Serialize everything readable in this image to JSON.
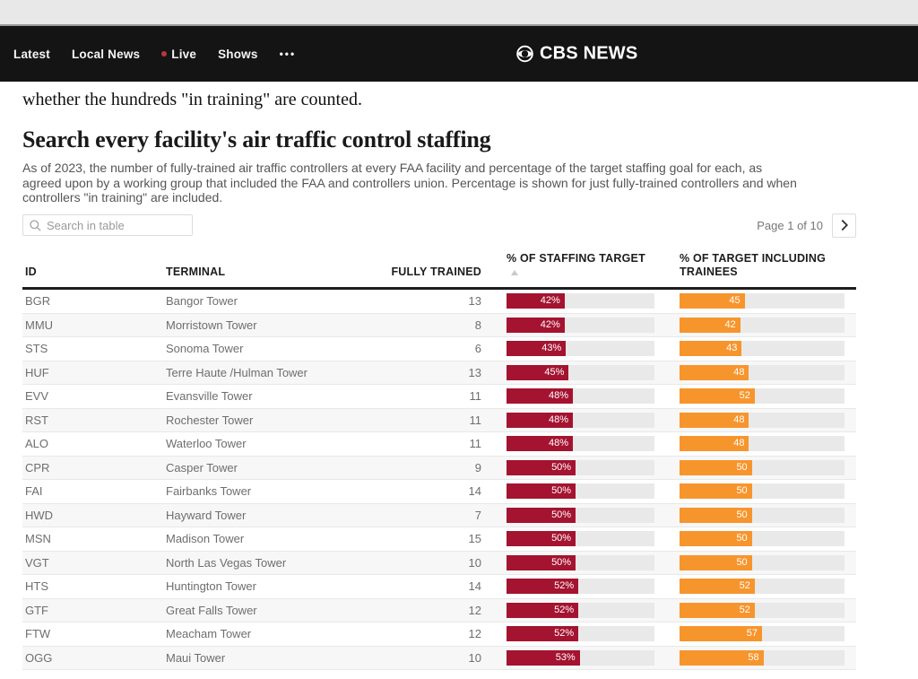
{
  "nav": {
    "items": [
      {
        "label": "Latest"
      },
      {
        "label": "Local News"
      },
      {
        "label": "Live",
        "has_dot": true
      },
      {
        "label": "Shows"
      },
      {
        "label": "•••"
      }
    ],
    "live_dot_color": "#b5383e",
    "brand": "CBS NEWS"
  },
  "article": {
    "intro_fragment": "whether the hundreds \"in training\" are counted.",
    "title": "Search every facility's air traffic control staffing",
    "description_lines": [
      "As of 2023, the number of fully-trained air traffic controllers at every FAA facility and percentage of the target staffing goal for each, as",
      "agreed upon by a working group that included the FAA and controllers union. Percentage is shown for just fully-trained controllers and when",
      "controllers \"in training\" are included."
    ]
  },
  "table": {
    "search_placeholder": "Search in table",
    "pagination": {
      "label": "Page 1 of 10"
    },
    "columns": {
      "id": "ID",
      "terminal": "TERMINAL",
      "fully_trained": "FULLY TRAINED",
      "staffing": "% OF STAFFING TARGET",
      "trainees": "% OF TARGET INCLUDING TRAINEES"
    },
    "sort": {
      "column": "% OF STAFFING TARGET",
      "direction": "asc"
    },
    "colors": {
      "staffing_bar": "#a41330",
      "trainees_bar": "#f7952d",
      "track": "#e9e9e9"
    },
    "bar_scale": {
      "staffing_max": 107,
      "trainees_max": 114
    },
    "rows": [
      {
        "id": "BGR",
        "terminal": "Bangor Tower",
        "fully_trained": "13",
        "staffing_pct": 42,
        "staffing_label": "42%",
        "trainees_pct": 45,
        "trainees_label": "45"
      },
      {
        "id": "MMU",
        "terminal": "Morristown Tower",
        "fully_trained": "8",
        "staffing_pct": 42,
        "staffing_label": "42%",
        "trainees_pct": 42,
        "trainees_label": "42"
      },
      {
        "id": "STS",
        "terminal": "Sonoma Tower",
        "fully_trained": "6",
        "staffing_pct": 43,
        "staffing_label": "43%",
        "trainees_pct": 43,
        "trainees_label": "43"
      },
      {
        "id": "HUF",
        "terminal": "Terre Haute /Hulman Tower",
        "fully_trained": "13",
        "staffing_pct": 45,
        "staffing_label": "45%",
        "trainees_pct": 48,
        "trainees_label": "48"
      },
      {
        "id": "EVV",
        "terminal": "Evansville Tower",
        "fully_trained": "11",
        "staffing_pct": 48,
        "staffing_label": "48%",
        "trainees_pct": 52,
        "trainees_label": "52"
      },
      {
        "id": "RST",
        "terminal": "Rochester Tower",
        "fully_trained": "11",
        "staffing_pct": 48,
        "staffing_label": "48%",
        "trainees_pct": 48,
        "trainees_label": "48"
      },
      {
        "id": "ALO",
        "terminal": "Waterloo Tower",
        "fully_trained": "11",
        "staffing_pct": 48,
        "staffing_label": "48%",
        "trainees_pct": 48,
        "trainees_label": "48"
      },
      {
        "id": "CPR",
        "terminal": "Casper Tower",
        "fully_trained": "9",
        "staffing_pct": 50,
        "staffing_label": "50%",
        "trainees_pct": 50,
        "trainees_label": "50"
      },
      {
        "id": "FAI",
        "terminal": "Fairbanks Tower",
        "fully_trained": "14",
        "staffing_pct": 50,
        "staffing_label": "50%",
        "trainees_pct": 50,
        "trainees_label": "50"
      },
      {
        "id": "HWD",
        "terminal": "Hayward Tower",
        "fully_trained": "7",
        "staffing_pct": 50,
        "staffing_label": "50%",
        "trainees_pct": 50,
        "trainees_label": "50"
      },
      {
        "id": "MSN",
        "terminal": "Madison Tower",
        "fully_trained": "15",
        "staffing_pct": 50,
        "staffing_label": "50%",
        "trainees_pct": 50,
        "trainees_label": "50"
      },
      {
        "id": "VGT",
        "terminal": "North Las Vegas Tower",
        "fully_trained": "10",
        "staffing_pct": 50,
        "staffing_label": "50%",
        "trainees_pct": 50,
        "trainees_label": "50"
      },
      {
        "id": "HTS",
        "terminal": "Huntington Tower",
        "fully_trained": "14",
        "staffing_pct": 52,
        "staffing_label": "52%",
        "trainees_pct": 52,
        "trainees_label": "52"
      },
      {
        "id": "GTF",
        "terminal": "Great Falls Tower",
        "fully_trained": "12",
        "staffing_pct": 52,
        "staffing_label": "52%",
        "trainees_pct": 52,
        "trainees_label": "52"
      },
      {
        "id": "FTW",
        "terminal": "Meacham Tower",
        "fully_trained": "12",
        "staffing_pct": 52,
        "staffing_label": "52%",
        "trainees_pct": 57,
        "trainees_label": "57"
      },
      {
        "id": "OGG",
        "terminal": "Maui Tower",
        "fully_trained": "10",
        "staffing_pct": 53,
        "staffing_label": "53%",
        "trainees_pct": 58,
        "trainees_label": "58"
      }
    ]
  }
}
